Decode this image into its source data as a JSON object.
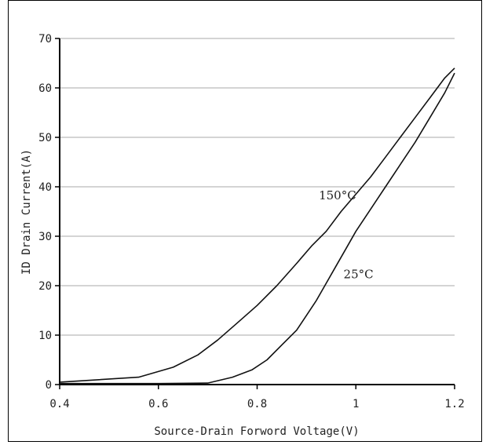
{
  "chart_data": {
    "type": "line",
    "xlabel": "Source-Drain Forword Voltage(V)",
    "ylabel": "ID Drain Current(A)",
    "xlim": [
      0.4,
      1.2
    ],
    "ylim": [
      0,
      70
    ],
    "xticks": [
      0.4,
      0.6,
      0.8,
      1,
      1.2
    ],
    "xtick_labels": [
      "0.4",
      "0.6",
      "0.8",
      "1",
      "1.2"
    ],
    "yticks": [
      0,
      10,
      20,
      30,
      40,
      50,
      60,
      70
    ],
    "ytick_labels": [
      "0",
      "10",
      "20",
      "30",
      "40",
      "50",
      "60",
      "70"
    ],
    "grid": true,
    "annotations": [
      {
        "text": "150°C",
        "x": 0.925,
        "y": 37.5
      },
      {
        "text": "25°C",
        "x": 0.975,
        "y": 21.5
      }
    ],
    "series": [
      {
        "name": "150°C",
        "x": [
          0.4,
          0.56,
          0.63,
          0.68,
          0.72,
          0.76,
          0.8,
          0.84,
          0.88,
          0.91,
          0.94,
          0.97,
          1.0,
          1.03,
          1.06,
          1.09,
          1.12,
          1.15,
          1.18,
          1.2
        ],
        "y": [
          0.5,
          1.5,
          3.5,
          6,
          9,
          12.5,
          16,
          20,
          24.5,
          28,
          31,
          35,
          38.5,
          42,
          46,
          50,
          54,
          58,
          62,
          64
        ]
      },
      {
        "name": "25°C",
        "x": [
          0.4,
          0.6,
          0.7,
          0.75,
          0.79,
          0.82,
          0.85,
          0.88,
          0.9,
          0.92,
          0.94,
          0.96,
          0.98,
          1.0,
          1.03,
          1.06,
          1.09,
          1.12,
          1.15,
          1.18,
          1.2
        ],
        "y": [
          0.2,
          0.2,
          0.3,
          1.5,
          3,
          5,
          8,
          11,
          14,
          17,
          20.5,
          24,
          27.5,
          31,
          35.5,
          40,
          44.5,
          49,
          54,
          59,
          63
        ]
      }
    ]
  }
}
